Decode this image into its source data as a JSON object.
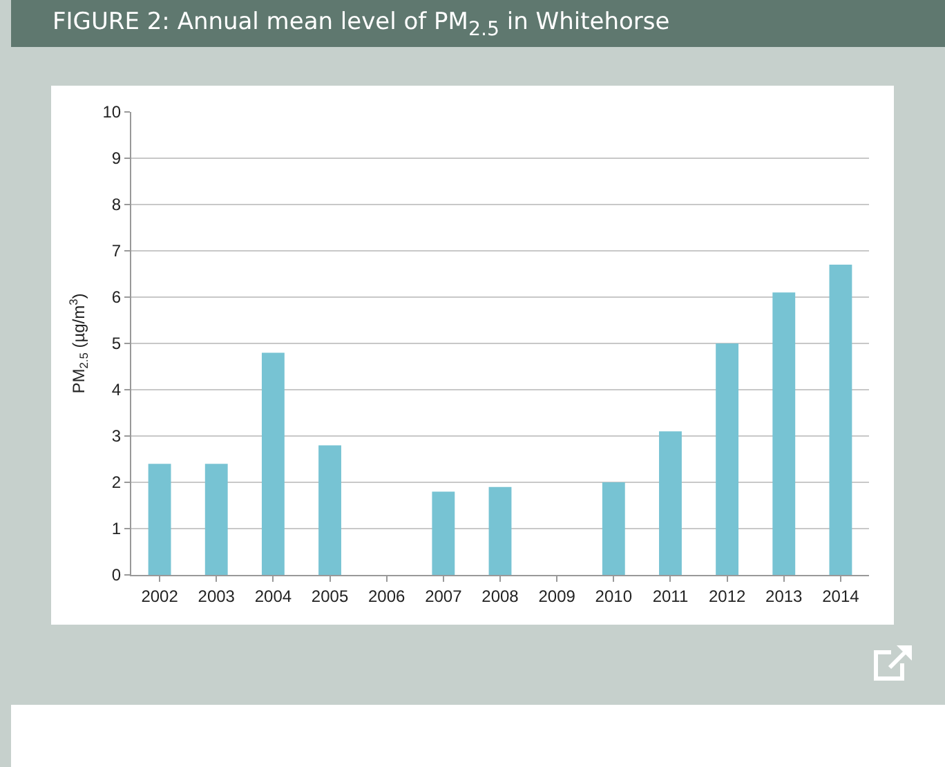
{
  "chart_data": {
    "type": "bar",
    "title": "FIGURE 2: Annual mean level of PM$_{2.5}$ in Whitehorse",
    "ylabel": "PM$_{2.5}$ (µg/m$^{3}$)",
    "categories": [
      "2002",
      "2003",
      "2004",
      "2005",
      "2006",
      "2007",
      "2008",
      "2009",
      "2010",
      "2011",
      "2012",
      "2013",
      "2014"
    ],
    "values": [
      2.4,
      2.4,
      4.8,
      2.8,
      null,
      1.8,
      1.9,
      null,
      2.0,
      3.1,
      5.0,
      6.1,
      6.7
    ],
    "color": "#77c3d3",
    "ylim": [
      0,
      10
    ],
    "yticks": [
      0,
      1,
      2,
      3,
      4,
      5,
      6,
      7,
      8,
      9,
      10
    ],
    "grid": "y"
  }
}
